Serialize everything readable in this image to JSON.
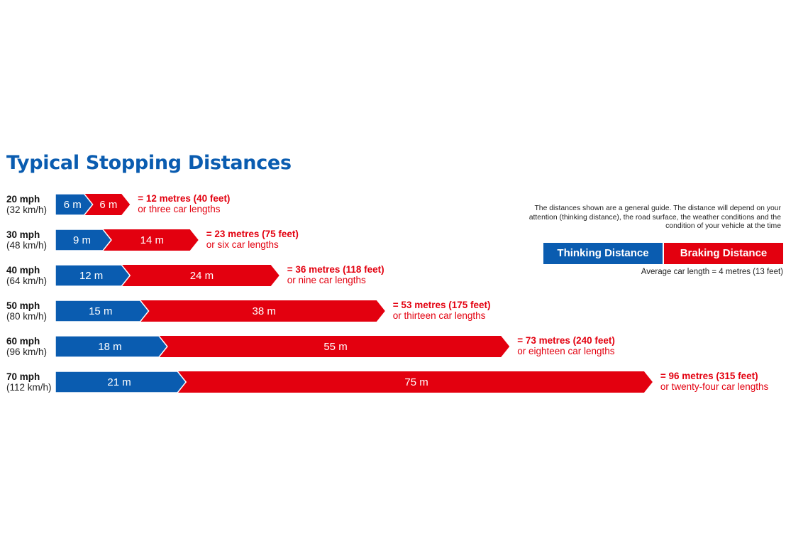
{
  "title": "Typical Stopping Distances",
  "note": "The distances shown are a general guide. The distance will depend on your attention (thinking distance), the road surface, the weather conditions and the condition of your vehicle at the time",
  "legend": {
    "thinking": "Thinking Distance",
    "braking": "Braking Distance"
  },
  "car_note": "Average car length = 4 metres (13 feet)",
  "colors": {
    "thinking": "#0a5cb0",
    "braking": "#e3000f",
    "title": "#0a5cb0"
  },
  "chart_data": {
    "type": "bar",
    "stacked": true,
    "orientation": "horizontal",
    "title": "Typical Stopping Distances",
    "unit": "m",
    "categories": [
      "20 mph",
      "30 mph",
      "40 mph",
      "50 mph",
      "60 mph",
      "70 mph"
    ],
    "category_sublabels": [
      "(32 km/h)",
      "(48 km/h)",
      "(64 km/h)",
      "(80 km/h)",
      "(96 km/h)",
      "(112 km/h)"
    ],
    "series": [
      {
        "name": "Thinking Distance",
        "values": [
          6,
          9,
          12,
          15,
          18,
          21
        ],
        "labels": [
          "6 m",
          "9 m",
          "12 m",
          "15 m",
          "18 m",
          "21 m"
        ]
      },
      {
        "name": "Braking Distance",
        "values": [
          6,
          14,
          24,
          38,
          55,
          75
        ],
        "labels": [
          "6 m",
          "14 m",
          "24 m",
          "38 m",
          "55 m",
          "75 m"
        ]
      }
    ],
    "totals": [
      "= 12 metres (40 feet)",
      "= 23 metres (75 feet)",
      "= 36 metres (118 feet)",
      "= 53 metres (175 feet)",
      "= 73 metres (240 feet)",
      "= 96 metres (315 feet)"
    ],
    "car_lengths": [
      "or three car lengths",
      "or six car lengths",
      "or nine car lengths",
      "or thirteen car lengths",
      "or eighteen car lengths",
      "or twenty-four car lengths"
    ],
    "legend_position": "right",
    "grid": false
  }
}
